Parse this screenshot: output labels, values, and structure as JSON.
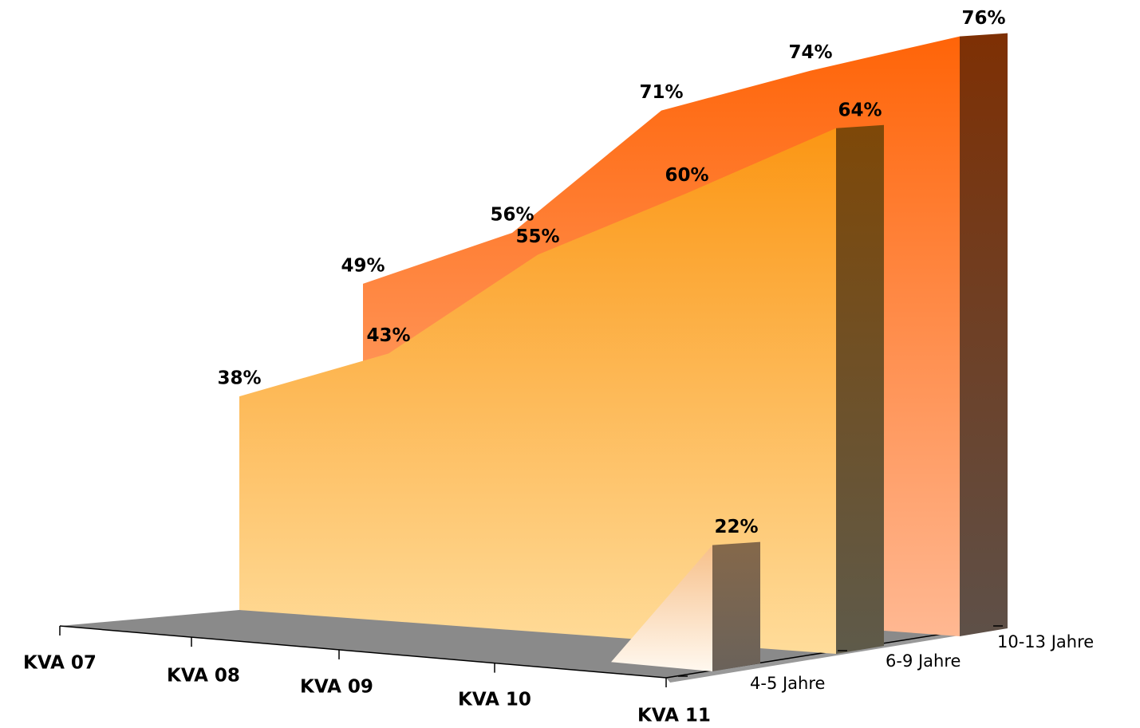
{
  "chart_data": {
    "type": "area3d",
    "categories": [
      "KVA 07",
      "KVA 08",
      "KVA 09",
      "KVA 10",
      "KVA 11"
    ],
    "series": [
      {
        "name": "4-5 Jahre",
        "color": "#fdd9b0",
        "values": [
          null,
          null,
          null,
          null,
          22
        ],
        "value_labels": [
          null,
          null,
          null,
          null,
          "22%"
        ]
      },
      {
        "name": "6-9 Jahre",
        "color": "#fb9a1e",
        "values": [
          38,
          43,
          55,
          60,
          64
        ],
        "value_labels": [
          "38%",
          "43%",
          "55%",
          "60%",
          "64%"
        ]
      },
      {
        "name": "10-13 Jahre",
        "color": "#ff6410",
        "values": [
          49,
          56,
          71,
          74,
          76
        ],
        "value_labels": [
          "49%",
          "56%",
          "71%",
          "74%",
          "76%"
        ]
      }
    ]
  }
}
